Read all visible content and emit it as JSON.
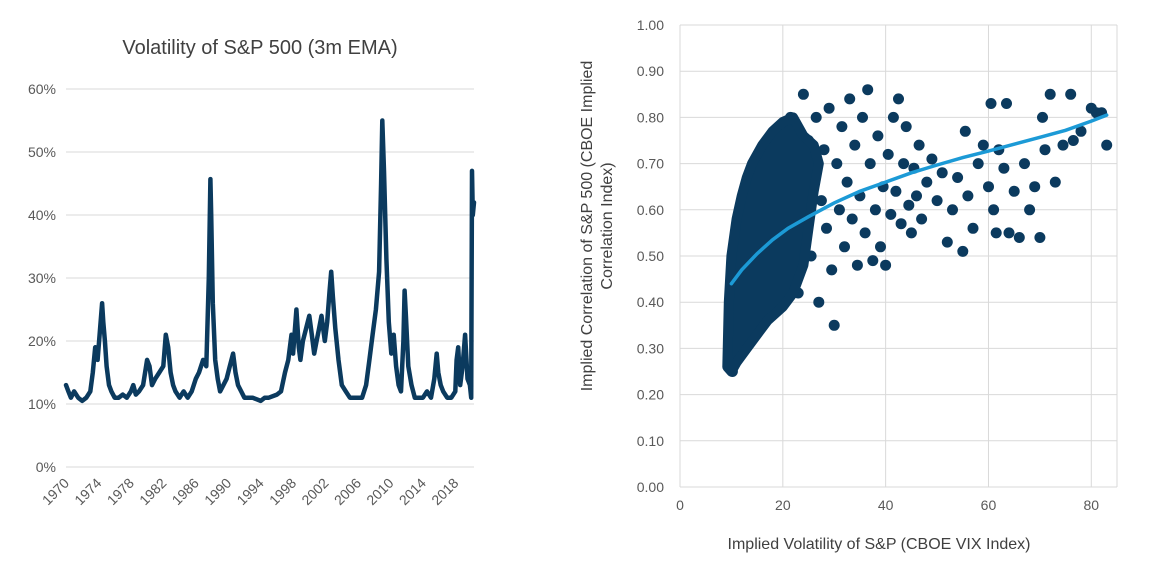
{
  "chart_data": [
    {
      "type": "line",
      "title": "Volatility of S&P 500 (3m EMA)",
      "xlabel": "",
      "ylabel": "",
      "x_ticks": [
        "1970",
        "1974",
        "1978",
        "1982",
        "1986",
        "1990",
        "1994",
        "1998",
        "2002",
        "2006",
        "2010",
        "2014",
        "2018"
      ],
      "y_ticks": [
        "0%",
        "10%",
        "20%",
        "30%",
        "40%",
        "50%",
        "60%"
      ],
      "ylim": [
        0,
        60
      ],
      "xlim": [
        1970,
        2020.3
      ],
      "grid": true,
      "legend": "none",
      "color": "#0b3a5e",
      "series": [
        {
          "x": [
            1970.0,
            1970.3,
            1970.6,
            1971.0,
            1971.5,
            1972.0,
            1972.5,
            1973.0,
            1973.3,
            1973.6,
            1973.9,
            1974.2,
            1974.45,
            1974.6,
            1974.8,
            1975.0,
            1975.3,
            1975.6,
            1976.0,
            1976.5,
            1977.0,
            1977.5,
            1978.0,
            1978.3,
            1978.6,
            1979.0,
            1979.5,
            1980.0,
            1980.3,
            1980.6,
            1981.0,
            1981.5,
            1982.0,
            1982.3,
            1982.6,
            1982.9,
            1983.2,
            1983.5,
            1984.0,
            1984.5,
            1985.0,
            1985.5,
            1986.0,
            1986.4,
            1986.9,
            1987.3,
            1987.6,
            1987.8,
            1987.9,
            1988.1,
            1988.4,
            1988.7,
            1989.0,
            1989.4,
            1989.8,
            1990.2,
            1990.6,
            1990.9,
            1991.2,
            1991.6,
            1992.0,
            1993.0,
            1994.0,
            1994.5,
            1995.0,
            1996.0,
            1996.5,
            1997.0,
            1997.4,
            1997.8,
            1998.0,
            1998.4,
            1998.7,
            1998.9,
            1999.2,
            1999.6,
            2000.0,
            2000.3,
            2000.6,
            2000.9,
            2001.2,
            2001.5,
            2001.9,
            2002.2,
            2002.5,
            2002.7,
            2002.9,
            2003.2,
            2003.6,
            2004.0,
            2004.5,
            2005.0,
            2005.5,
            2006.0,
            2006.5,
            2007.0,
            2007.4,
            2007.8,
            2008.2,
            2008.6,
            2008.85,
            2009.0,
            2009.2,
            2009.5,
            2009.8,
            2010.1,
            2010.4,
            2010.7,
            2011.0,
            2011.3,
            2011.6,
            2011.75,
            2011.9,
            2012.2,
            2012.6,
            2013.0,
            2013.5,
            2014.0,
            2014.5,
            2015.0,
            2015.4,
            2015.7,
            2015.9,
            2016.2,
            2016.5,
            2017.0,
            2017.5,
            2018.0,
            2018.15,
            2018.35,
            2018.6,
            2018.9,
            2019.2,
            2019.5,
            2019.8,
            2019.95,
            2020.05,
            2020.15,
            2020.3
          ],
          "values": [
            13,
            12,
            11,
            12,
            11,
            10.5,
            11,
            12,
            15,
            19,
            17,
            22,
            26,
            23,
            20,
            16,
            13,
            12,
            11,
            11,
            11.5,
            11,
            12,
            13,
            11.5,
            12,
            13,
            17,
            16,
            13,
            14,
            15,
            16,
            21,
            19,
            15,
            13,
            12,
            11,
            12,
            11,
            12,
            14,
            15,
            17,
            16,
            30,
            45.7,
            40,
            26,
            17,
            14,
            12,
            13,
            14,
            16,
            18,
            15,
            13,
            12,
            11,
            11,
            10.5,
            11,
            11,
            11.5,
            12,
            15,
            17,
            21,
            18,
            25,
            19,
            17,
            20,
            22,
            24,
            21,
            18,
            20,
            22,
            24,
            20,
            23,
            28,
            31,
            27,
            22,
            17,
            13,
            12,
            11,
            11,
            11,
            11,
            13,
            17,
            21,
            25,
            31,
            45,
            55,
            47,
            33,
            23,
            18,
            21,
            16,
            13,
            12,
            20,
            28,
            24,
            16,
            13,
            11,
            11,
            11,
            12,
            11,
            14,
            18,
            15,
            13,
            12,
            11,
            11,
            12,
            17,
            19,
            13,
            16,
            21,
            14,
            13,
            11,
            47,
            40,
            42
          ]
        }
      ]
    },
    {
      "type": "scatter",
      "title": "",
      "xlabel": "Implied Volatility of S&P (CBOE VIX Index)",
      "ylabel": "Implied Correlation of S&P 500 (CBOE Implied Correlation Index)",
      "ylabel_lines": [
        "Implied Correlation of S&P 500 (CBOE Implied",
        "Correlation Index)"
      ],
      "x_ticks": [
        "0",
        "20",
        "40",
        "60",
        "80"
      ],
      "y_ticks": [
        "0.00",
        "0.10",
        "0.20",
        "0.30",
        "0.40",
        "0.50",
        "0.60",
        "0.70",
        "0.80",
        "0.90",
        "1.00"
      ],
      "xlim": [
        0,
        85
      ],
      "ylim": [
        0,
        1.0
      ],
      "grid": true,
      "legend": "none",
      "point_color": "#0b3a5e",
      "trend_color": "#1c9ad6",
      "trend": {
        "type": "log",
        "x": [
          10,
          12,
          15,
          18,
          21,
          25,
          30,
          35,
          40,
          45,
          50,
          55,
          60,
          65,
          70,
          75,
          80,
          83
        ],
        "values": [
          0.44,
          0.47,
          0.505,
          0.535,
          0.56,
          0.585,
          0.615,
          0.64,
          0.66,
          0.68,
          0.697,
          0.713,
          0.727,
          0.742,
          0.757,
          0.772,
          0.792,
          0.805
        ]
      },
      "points": [
        [
          9.6,
          0.27
        ],
        [
          10.2,
          0.25
        ],
        [
          10.5,
          0.3
        ],
        [
          9.8,
          0.35
        ],
        [
          10.3,
          0.4
        ],
        [
          10.8,
          0.33
        ],
        [
          11.5,
          0.28
        ],
        [
          11.0,
          0.45
        ],
        [
          11.8,
          0.38
        ],
        [
          12.5,
          0.32
        ],
        [
          12.2,
          0.5
        ],
        [
          13.0,
          0.42
        ],
        [
          13.5,
          0.36
        ],
        [
          12.8,
          0.58
        ],
        [
          14.0,
          0.47
        ],
        [
          14.5,
          0.6
        ],
        [
          13.8,
          0.65
        ],
        [
          15.2,
          0.55
        ],
        [
          15.8,
          0.68
        ],
        [
          16.3,
          0.5
        ],
        [
          16.8,
          0.72
        ],
        [
          17.5,
          0.62
        ],
        [
          18.0,
          0.75
        ],
        [
          18.5,
          0.45
        ],
        [
          19.0,
          0.7
        ],
        [
          19.5,
          0.56
        ],
        [
          20.0,
          0.78
        ],
        [
          20.5,
          0.65
        ],
        [
          21.0,
          0.48
        ],
        [
          21.5,
          0.8
        ],
        [
          22.0,
          0.6
        ],
        [
          22.5,
          0.72
        ],
        [
          23.0,
          0.42
        ],
        [
          23.5,
          0.67
        ],
        [
          24.0,
          0.85
        ],
        [
          24.5,
          0.55
        ],
        [
          25.0,
          0.75
        ],
        [
          25.5,
          0.5
        ],
        [
          26.0,
          0.68
        ],
        [
          26.5,
          0.8
        ],
        [
          27.0,
          0.4
        ],
        [
          27.5,
          0.62
        ],
        [
          28.0,
          0.73
        ],
        [
          28.5,
          0.56
        ],
        [
          29.0,
          0.82
        ],
        [
          29.5,
          0.47
        ],
        [
          30.0,
          0.35
        ],
        [
          30.5,
          0.7
        ],
        [
          31.0,
          0.6
        ],
        [
          31.5,
          0.78
        ],
        [
          32.0,
          0.52
        ],
        [
          32.5,
          0.66
        ],
        [
          33.0,
          0.84
        ],
        [
          33.5,
          0.58
        ],
        [
          34.0,
          0.74
        ],
        [
          34.5,
          0.48
        ],
        [
          35.0,
          0.63
        ],
        [
          35.5,
          0.8
        ],
        [
          36.0,
          0.55
        ],
        [
          36.5,
          0.86
        ],
        [
          37.0,
          0.7
        ],
        [
          37.5,
          0.49
        ],
        [
          38.0,
          0.6
        ],
        [
          38.5,
          0.76
        ],
        [
          39.0,
          0.52
        ],
        [
          39.5,
          0.65
        ],
        [
          40.0,
          0.48
        ],
        [
          40.5,
          0.72
        ],
        [
          41.0,
          0.59
        ],
        [
          41.5,
          0.8
        ],
        [
          42.0,
          0.64
        ],
        [
          42.5,
          0.84
        ],
        [
          43.0,
          0.57
        ],
        [
          43.5,
          0.7
        ],
        [
          44.0,
          0.78
        ],
        [
          44.5,
          0.61
        ],
        [
          45.0,
          0.55
        ],
        [
          45.5,
          0.69
        ],
        [
          46.0,
          0.63
        ],
        [
          46.5,
          0.74
        ],
        [
          47.0,
          0.58
        ],
        [
          48.0,
          0.66
        ],
        [
          49.0,
          0.71
        ],
        [
          50.0,
          0.62
        ],
        [
          51.0,
          0.68
        ],
        [
          52.0,
          0.53
        ],
        [
          53.0,
          0.6
        ],
        [
          54.0,
          0.67
        ],
        [
          55.0,
          0.51
        ],
        [
          55.5,
          0.77
        ],
        [
          56.0,
          0.63
        ],
        [
          57.0,
          0.56
        ],
        [
          58.0,
          0.7
        ],
        [
          59.0,
          0.74
        ],
        [
          60.0,
          0.65
        ],
        [
          60.5,
          0.83
        ],
        [
          61.0,
          0.6
        ],
        [
          61.5,
          0.55
        ],
        [
          62.0,
          0.73
        ],
        [
          63.0,
          0.69
        ],
        [
          63.5,
          0.83
        ],
        [
          64.0,
          0.55
        ],
        [
          65.0,
          0.64
        ],
        [
          66.0,
          0.54
        ],
        [
          67.0,
          0.7
        ],
        [
          68.0,
          0.6
        ],
        [
          69.0,
          0.65
        ],
        [
          70.0,
          0.54
        ],
        [
          70.5,
          0.8
        ],
        [
          71.0,
          0.73
        ],
        [
          72.0,
          0.85
        ],
        [
          73.0,
          0.66
        ],
        [
          74.5,
          0.74
        ],
        [
          76.0,
          0.85
        ],
        [
          76.5,
          0.75
        ],
        [
          78.0,
          0.77
        ],
        [
          80.0,
          0.82
        ],
        [
          81.0,
          0.81
        ],
        [
          82.0,
          0.81
        ],
        [
          83.0,
          0.74
        ]
      ]
    }
  ]
}
